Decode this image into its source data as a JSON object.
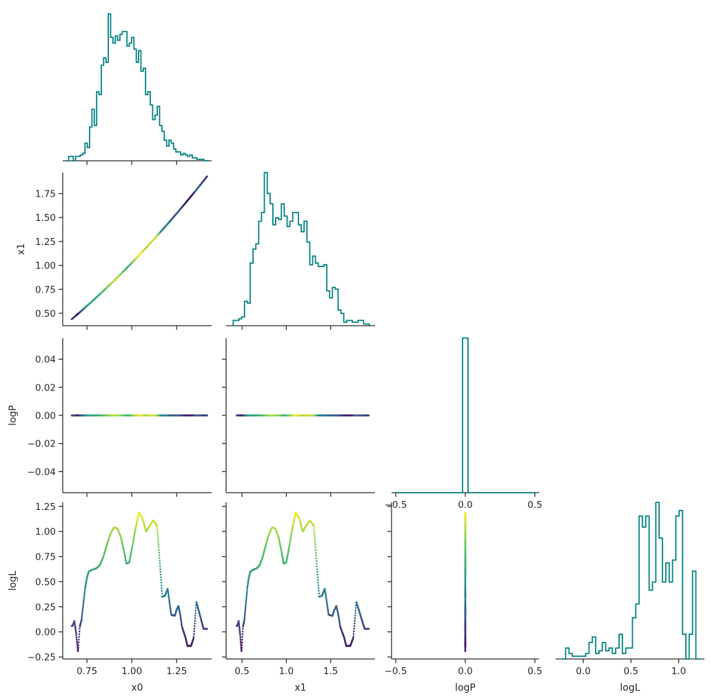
{
  "chart_data": {
    "type": "corner-plot",
    "variables": [
      "x0",
      "x1",
      "logP",
      "logL"
    ],
    "histogram_color": "#008080",
    "scatter_colormap": [
      "#440154",
      "#3b528b",
      "#21918c",
      "#5ec962",
      "#fde725"
    ],
    "histograms": [
      {
        "variable": "x0",
        "bin_edges": [
          0.635,
          0.648,
          0.661,
          0.674,
          0.687,
          0.7,
          0.713,
          0.726,
          0.739,
          0.752,
          0.765,
          0.778,
          0.791,
          0.804,
          0.817,
          0.83,
          0.843,
          0.856,
          0.869,
          0.882,
          0.895,
          0.908,
          0.921,
          0.934,
          0.947,
          0.96,
          0.973,
          0.986,
          0.999,
          1.012,
          1.025,
          1.038,
          1.051,
          1.064,
          1.077,
          1.09,
          1.103,
          1.116,
          1.129,
          1.142,
          1.155,
          1.168,
          1.181,
          1.194,
          1.207,
          1.22,
          1.233,
          1.246,
          1.259,
          1.272,
          1.285,
          1.298,
          1.311,
          1.324,
          1.337,
          1.35,
          1.363,
          1.376,
          1.389,
          1.402,
          1.415,
          1.428
        ],
        "counts": [
          0,
          3,
          3,
          0,
          3,
          3,
          4,
          5,
          12,
          9,
          23,
          35,
          24,
          47,
          45,
          65,
          70,
          67,
          100,
          84,
          80,
          85,
          82,
          86,
          88,
          88,
          78,
          80,
          84,
          76,
          67,
          75,
          61,
          63,
          45,
          47,
          38,
          28,
          31,
          37,
          24,
          20,
          14,
          10,
          14,
          12,
          8,
          6,
          6,
          4,
          5,
          4,
          3,
          4,
          2,
          2,
          1,
          1,
          1,
          0,
          0
        ]
      },
      {
        "variable": "x1",
        "bin_edges": [
          0.4,
          0.432,
          0.464,
          0.496,
          0.528,
          0.56,
          0.592,
          0.624,
          0.656,
          0.688,
          0.72,
          0.752,
          0.784,
          0.816,
          0.848,
          0.88,
          0.912,
          0.944,
          0.976,
          1.008,
          1.04,
          1.072,
          1.104,
          1.136,
          1.168,
          1.2,
          1.232,
          1.264,
          1.296,
          1.328,
          1.36,
          1.392,
          1.424,
          1.456,
          1.488,
          1.52,
          1.552,
          1.584,
          1.616,
          1.648,
          1.68,
          1.712,
          1.744,
          1.776,
          1.808,
          1.84,
          1.872,
          1.904,
          1.936
        ],
        "counts": [
          3,
          3,
          4,
          5,
          14,
          13,
          36,
          44,
          47,
          60,
          65,
          88,
          76,
          70,
          58,
          62,
          61,
          70,
          63,
          57,
          60,
          65,
          65,
          58,
          54,
          60,
          48,
          35,
          40,
          36,
          34,
          34,
          35,
          20,
          16,
          22,
          21,
          9,
          7,
          2,
          3,
          3,
          2,
          2,
          3,
          3,
          1,
          1
        ]
      },
      {
        "variable": "logP",
        "bin_edges": [
          -0.5,
          -0.02,
          0.02,
          0.5
        ],
        "counts": [
          0,
          100,
          0
        ]
      },
      {
        "variable": "logL",
        "bin_edges": [
          -0.22,
          -0.185,
          -0.15,
          -0.115,
          -0.08,
          -0.045,
          -0.01,
          0.025,
          0.06,
          0.095,
          0.13,
          0.165,
          0.2,
          0.235,
          0.27,
          0.305,
          0.34,
          0.375,
          0.41,
          0.445,
          0.48,
          0.515,
          0.55,
          0.585,
          0.62,
          0.655,
          0.69,
          0.725,
          0.76,
          0.795,
          0.83,
          0.865,
          0.9,
          0.935,
          0.97,
          1.005,
          1.04,
          1.075,
          1.11,
          1.145,
          1.18,
          1.215
        ],
        "counts": [
          0,
          4,
          2,
          1,
          1,
          1,
          1,
          2,
          6,
          8,
          2,
          3,
          6,
          3,
          4,
          2,
          4,
          9,
          2,
          4,
          4,
          15,
          20,
          52,
          48,
          52,
          25,
          28,
          57,
          44,
          28,
          35,
          28,
          36,
          52,
          54,
          9,
          0,
          9,
          32,
          0
        ]
      }
    ],
    "scatter": [
      {
        "x": "x0",
        "y": "x1",
        "relation": "monotonic curve",
        "x_range": [
          0.66,
          1.42
        ],
        "y_range": [
          0.43,
          1.93
        ]
      },
      {
        "x": "x0",
        "y": "logP",
        "relation": "constant",
        "value": 0.0
      },
      {
        "x": "x1",
        "y": "logP",
        "relation": "constant",
        "value": 0.0
      },
      {
        "x": "x0",
        "y": "logL",
        "relation": "curve",
        "points": [
          [
            0.67,
            0.06
          ],
          [
            0.68,
            0.11
          ],
          [
            0.69,
            -0.02
          ],
          [
            0.7,
            -0.2
          ],
          [
            0.71,
            0.05
          ],
          [
            0.72,
            0.12
          ],
          [
            0.73,
            0.28
          ],
          [
            0.74,
            0.44
          ],
          [
            0.75,
            0.54
          ],
          [
            0.76,
            0.6
          ],
          [
            0.78,
            0.62
          ],
          [
            0.8,
            0.63
          ],
          [
            0.82,
            0.66
          ],
          [
            0.84,
            0.74
          ],
          [
            0.86,
            0.86
          ],
          [
            0.88,
            0.97
          ],
          [
            0.9,
            1.04
          ],
          [
            0.92,
            1.03
          ],
          [
            0.94,
            0.94
          ],
          [
            0.955,
            0.82
          ],
          [
            0.97,
            0.68
          ],
          [
            0.985,
            0.69
          ],
          [
            1.0,
            0.82
          ],
          [
            1.02,
            1.02
          ],
          [
            1.04,
            1.19
          ],
          [
            1.06,
            1.13
          ],
          [
            1.08,
            1.0
          ],
          [
            1.1,
            1.06
          ],
          [
            1.12,
            1.11
          ],
          [
            1.14,
            1.06
          ],
          [
            1.15,
            0.85
          ],
          [
            1.16,
            0.6
          ],
          [
            1.17,
            0.35
          ],
          [
            1.185,
            0.36
          ],
          [
            1.2,
            0.43
          ],
          [
            1.21,
            0.3
          ],
          [
            1.22,
            0.17
          ],
          [
            1.24,
            0.16
          ],
          [
            1.25,
            0.22
          ],
          [
            1.26,
            0.26
          ],
          [
            1.27,
            0.17
          ],
          [
            1.28,
            0.05
          ],
          [
            1.3,
            -0.06
          ],
          [
            1.31,
            -0.14
          ],
          [
            1.33,
            -0.14
          ],
          [
            1.345,
            -0.06
          ],
          [
            1.36,
            0.3
          ],
          [
            1.4,
            0.03
          ]
        ]
      },
      {
        "x": "x1",
        "y": "logL",
        "relation": "curve"
      },
      {
        "x": "logP",
        "y": "logL",
        "relation": "vertical line",
        "value": 0.0,
        "y_range": [
          -0.22,
          1.2
        ]
      }
    ],
    "axes": {
      "x0": {
        "ticks": [
          "0.75",
          "1.00",
          "1.25"
        ],
        "tick_values": [
          0.75,
          1.0,
          1.25
        ],
        "range": [
          0.615,
          1.445
        ]
      },
      "x1": {
        "ticks": [
          "0.5",
          "1.0",
          "1.5"
        ],
        "tick_values": [
          0.5,
          1.0,
          1.5
        ],
        "range": [
          0.32,
          2.0
        ]
      },
      "x1_y": {
        "ticks": [
          "0.50",
          "0.75",
          "1.00",
          "1.25",
          "1.50",
          "1.75"
        ],
        "tick_values": [
          0.5,
          0.75,
          1.0,
          1.25,
          1.5,
          1.75
        ],
        "range": [
          0.37,
          1.97
        ]
      },
      "logP": {
        "ticks": [
          "−0.5",
          "0.0",
          "0.5"
        ],
        "tick_values": [
          -0.5,
          0.0,
          0.5
        ],
        "range": [
          -0.53,
          0.53
        ]
      },
      "logP_y": {
        "ticks": [
          "0.04",
          "0.02",
          "0.00",
          "−0.02",
          "−0.04"
        ],
        "tick_values": [
          0.04,
          0.02,
          0.0,
          -0.02,
          -0.04
        ],
        "range": [
          -0.055,
          0.055
        ]
      },
      "logL": {
        "ticks": [
          "0.0",
          "0.5",
          "1.0"
        ],
        "tick_values": [
          0.0,
          0.5,
          1.0
        ],
        "range": [
          -0.29,
          1.27
        ]
      },
      "logL_y": {
        "ticks": [
          "1.25",
          "1.00",
          "0.75",
          "0.50",
          "0.25",
          "0.00",
          "−0.25"
        ],
        "tick_values": [
          1.25,
          1.0,
          0.75,
          0.5,
          0.25,
          0.0,
          -0.25
        ],
        "range": [
          -0.27,
          1.29
        ]
      }
    },
    "labels": {
      "x0": "x0",
      "x1": "x1",
      "logP": "logP",
      "logL": "logL"
    }
  }
}
